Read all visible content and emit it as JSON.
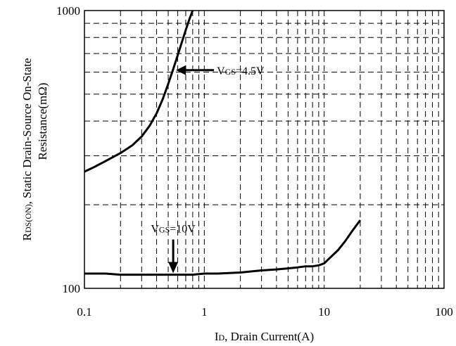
{
  "chart_data": {
    "type": "line",
    "xscale": "log",
    "yscale": "log",
    "xlim": [
      0.1,
      100
    ],
    "ylim": [
      100,
      1000
    ],
    "grid": true,
    "x_ticks": [
      {
        "value": 0.1,
        "label": "0.1"
      },
      {
        "value": 1,
        "label": "1"
      },
      {
        "value": 10,
        "label": "10"
      },
      {
        "value": 100,
        "label": "100"
      }
    ],
    "y_ticks": [
      {
        "value": 100,
        "label": "100"
      },
      {
        "value": 1000,
        "label": "1000"
      }
    ],
    "xlabel": {
      "prefix": "I",
      "sub": "D",
      "suffix": ", Drain Current(A)"
    },
    "ylabel": {
      "line1_prefix": "R",
      "line1_sub": "DS(ON)",
      "line1_suffix": ", Static Drain-Source On-State",
      "line2": "Resistance(mΩ)"
    },
    "series": [
      {
        "vgs": "4.5V",
        "x": [
          0.1,
          0.12,
          0.15,
          0.2,
          0.25,
          0.3,
          0.35,
          0.4,
          0.45,
          0.5,
          0.55,
          0.6,
          0.65,
          0.7,
          0.75,
          0.8
        ],
        "y": [
          263,
          273,
          287,
          307,
          327,
          352,
          385,
          427,
          480,
          545,
          615,
          690,
          770,
          850,
          930,
          1000
        ]
      },
      {
        "vgs": "10V",
        "x": [
          0.1,
          0.15,
          0.2,
          0.3,
          0.5,
          0.8,
          1,
          1.3,
          2,
          3,
          4,
          5,
          6,
          7,
          8,
          9,
          10,
          11,
          13,
          15,
          17,
          20
        ],
        "y": [
          113,
          113,
          112,
          112,
          112,
          112,
          113,
          113,
          114,
          116,
          117,
          118,
          119,
          120,
          120,
          121,
          123,
          128,
          137,
          148,
          160,
          176
        ]
      }
    ],
    "annotations": [
      {
        "prefix": "V",
        "sub": "GS",
        "suffix": "=4.5V",
        "arrow": "left",
        "target_x": 0.55,
        "target_y": 610
      },
      {
        "prefix": "V",
        "sub": "GS",
        "suffix": "=10V",
        "arrow": "down",
        "target_x": 0.55,
        "target_y": 112
      }
    ]
  }
}
